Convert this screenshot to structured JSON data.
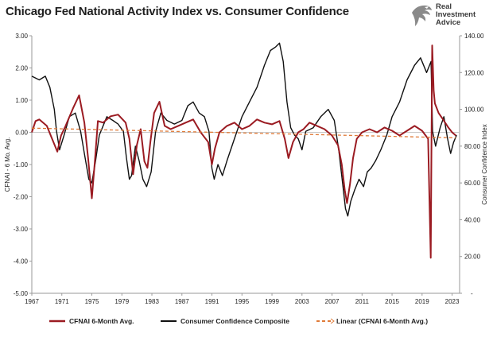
{
  "brand": {
    "line1": "Real",
    "line2": "Investment",
    "line3": "Advice",
    "icon": "eagle-logo-icon",
    "color": "#7a7a7a"
  },
  "chart_data": {
    "type": "line",
    "title": "Chicago Fed National Activity Index vs. Consumer Confidence",
    "xlabel": "",
    "ylabel": "CFNAI - 6 Mo. Avg.",
    "y2label": "Consumer Confidence Index",
    "xlim": [
      1967,
      2024
    ],
    "ylim": [
      -5.0,
      3.0
    ],
    "y2lim": [
      0,
      140
    ],
    "x_ticks": [
      "1967",
      "1971",
      "1975",
      "1979",
      "1983",
      "1987",
      "1991",
      "1995",
      "1999",
      "2003",
      "2007",
      "2011",
      "2015",
      "2019",
      "2023"
    ],
    "y_ticks": [
      "3.00",
      "2.00",
      "1.00",
      "0.00",
      "-1.00",
      "-2.00",
      "-3.00",
      "-4.00",
      "-5.00"
    ],
    "y2_ticks": [
      "140.00",
      "120.00",
      "100.00",
      "80.00",
      "60.00",
      "40.00",
      "20.00",
      "-"
    ],
    "legend_position": "bottom",
    "grid": false,
    "series": [
      {
        "name": "CFNAI 6-Month Avg.",
        "axis": "left",
        "color": "#9b1b22",
        "x": [
          1967.0,
          1967.5,
          1968.0,
          1969.0,
          1969.7,
          1970.4,
          1970.9,
          1971.5,
          1972.5,
          1973.3,
          1974.0,
          1974.5,
          1975.0,
          1975.4,
          1975.8,
          1976.5,
          1977.5,
          1978.5,
          1979.5,
          1980.0,
          1980.5,
          1981.0,
          1981.5,
          1982.0,
          1982.4,
          1982.8,
          1983.3,
          1984.0,
          1984.7,
          1985.5,
          1986.5,
          1987.5,
          1988.5,
          1989.5,
          1990.5,
          1991.0,
          1991.4,
          1992.0,
          1993.0,
          1994.0,
          1995.0,
          1996.0,
          1997.0,
          1998.0,
          1999.0,
          2000.0,
          2000.7,
          2001.2,
          2001.8,
          2002.5,
          2003.2,
          2004.0,
          2005.0,
          2006.0,
          2007.0,
          2007.8,
          2008.3,
          2008.7,
          2009.0,
          2009.4,
          2009.8,
          2010.3,
          2011.0,
          2012.0,
          2013.0,
          2014.0,
          2015.0,
          2016.0,
          2017.0,
          2018.0,
          2019.0,
          2019.8,
          2020.15,
          2020.25,
          2020.35,
          2020.55,
          2020.7,
          2021.2,
          2021.8,
          2022.5,
          2023.0,
          2023.5
        ],
        "values": [
          0.0,
          0.35,
          0.4,
          0.2,
          -0.2,
          -0.6,
          -0.1,
          0.2,
          0.75,
          1.15,
          0.3,
          -0.8,
          -2.05,
          -0.9,
          0.35,
          0.3,
          0.5,
          0.55,
          0.3,
          -0.2,
          -1.3,
          -0.4,
          0.1,
          -0.9,
          -1.1,
          -0.3,
          0.6,
          0.95,
          0.2,
          0.1,
          0.2,
          0.3,
          0.4,
          0.0,
          -0.3,
          -1.0,
          -0.5,
          0.0,
          0.2,
          0.3,
          0.1,
          0.2,
          0.4,
          0.3,
          0.25,
          0.35,
          -0.2,
          -0.8,
          -0.3,
          0.0,
          0.1,
          0.3,
          0.2,
          0.1,
          -0.1,
          -0.4,
          -1.0,
          -1.8,
          -2.2,
          -1.6,
          -0.8,
          -0.2,
          0.0,
          0.1,
          0.0,
          0.15,
          0.05,
          -0.1,
          0.05,
          0.2,
          0.05,
          -0.2,
          -3.9,
          -0.5,
          2.7,
          1.3,
          0.9,
          0.6,
          0.4,
          0.15,
          0.0,
          -0.1
        ]
      },
      {
        "name": "Consumer Confidence Composite",
        "axis": "right",
        "color": "#111111",
        "x": [
          1967.0,
          1968.0,
          1968.8,
          1969.4,
          1970.0,
          1970.3,
          1970.7,
          1971.3,
          1972.0,
          1972.8,
          1973.5,
          1974.0,
          1974.6,
          1975.0,
          1975.5,
          1976.0,
          1977.0,
          1977.8,
          1978.5,
          1979.2,
          1979.6,
          1980.0,
          1980.3,
          1980.8,
          1981.3,
          1981.8,
          1982.3,
          1982.9,
          1983.5,
          1984.2,
          1985.0,
          1986.0,
          1987.0,
          1987.8,
          1988.5,
          1989.3,
          1990.0,
          1990.6,
          1991.0,
          1991.3,
          1991.8,
          1992.4,
          1993.0,
          1994.0,
          1995.0,
          1996.0,
          1997.0,
          1998.0,
          1998.8,
          1999.5,
          2000.0,
          2000.5,
          2001.0,
          2001.5,
          2002.0,
          2002.5,
          2003.0,
          2003.5,
          2004.5,
          2005.5,
          2006.5,
          2007.3,
          2007.9,
          2008.4,
          2008.8,
          2009.1,
          2009.5,
          2010.0,
          2010.6,
          2011.2,
          2011.7,
          2012.2,
          2012.8,
          2013.5,
          2014.3,
          2015.0,
          2016.0,
          2017.0,
          2018.0,
          2018.8,
          2019.6,
          2020.2,
          2020.4,
          2020.8,
          2021.4,
          2021.9,
          2022.4,
          2022.8,
          2023.2,
          2023.6
        ],
        "values": [
          118,
          116,
          118,
          112,
          100,
          88,
          78,
          86,
          96,
          98,
          88,
          76,
          62,
          60,
          72,
          86,
          96,
          94,
          92,
          88,
          74,
          62,
          64,
          80,
          72,
          62,
          58,
          66,
          88,
          98,
          94,
          92,
          94,
          102,
          104,
          98,
          96,
          88,
          68,
          62,
          70,
          64,
          72,
          84,
          96,
          104,
          112,
          124,
          132,
          134,
          136,
          126,
          104,
          90,
          86,
          84,
          78,
          88,
          90,
          96,
          100,
          94,
          78,
          60,
          46,
          42,
          50,
          56,
          62,
          58,
          66,
          68,
          72,
          78,
          86,
          96,
          104,
          116,
          124,
          128,
          120,
          126,
          88,
          80,
          90,
          96,
          84,
          76,
          82,
          86
        ]
      },
      {
        "name": "Linear (CFNAI 6-Month Avg.)",
        "axis": "left",
        "color": "#e07b39",
        "x": [
          1967.0,
          2023.5
        ],
        "values": [
          0.13,
          -0.17
        ]
      }
    ]
  }
}
